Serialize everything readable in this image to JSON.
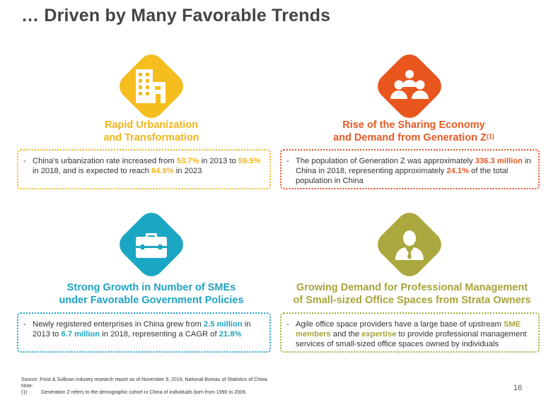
{
  "title": "… Driven by Many Favorable Trends",
  "colors": {
    "yellow": "#f6bd1e",
    "orange": "#e8561e",
    "teal": "#1ba7c4",
    "olive": "#aaa83f",
    "yellow_text": "#f0b51c",
    "orange_text": "#e55a25",
    "teal_text": "#1fa3c2",
    "olive_text": "#a7a53b"
  },
  "quadrants": {
    "urbanization": {
      "icon": "buildings-icon",
      "heading_line1": "Rapid Urbanization",
      "heading_line2": "and Transformation",
      "t1": "China’s urbanization rate increased from ",
      "h1": "53.7%",
      "t2": " in 2013 to ",
      "h2": "59.5%",
      "t3": " in 2018, and is expected to reach ",
      "h3": "64.9%",
      "t4": " in 2023"
    },
    "sharing": {
      "icon": "people-group-icon",
      "heading_line1": "Rise of the Sharing Economy",
      "heading_line2": "and Demand from Generation Z",
      "footnote_ref": "(1)",
      "t1": "The population of Generation Z was approximately ",
      "h1": "336.3 million",
      "t2": " in China in 2018, representing approximately ",
      "h2": "24.1%",
      "t3": " of the total population in China"
    },
    "smes": {
      "icon": "briefcase-icon",
      "heading_line1": "Strong Growth in Number of SMEs",
      "heading_line2": "under Favorable Government Policies",
      "t1": "Newly registered enterprises in China grew from ",
      "h1": "2.5 million",
      "t2": " in 2013 to ",
      "h2": "6.7 million",
      "t3": " in 2018, representing a CAGR of ",
      "h3": "21.8%"
    },
    "professional": {
      "icon": "businessman-icon",
      "heading_line1": "Growing Demand for Professional Management",
      "heading_line2": "of Small-sized Office Spaces from Strata Owners",
      "t1": "Agile office space providers have a large base of upstream ",
      "h1": "SME members",
      "t2": " and the ",
      "h2": "expertise",
      "t3": " to provide professional management services of small-sized office spaces owned by individuals"
    }
  },
  "bullet": "-",
  "footer": {
    "source": "Source:  Frost & Sullivan industry research report as of November 9, 2019, National Bureau of Statistics of China.",
    "note_label": "Note:",
    "note_number": "(1)",
    "note_text": "Generation Z refers to the demographic cohort in China of individuals born from 1990 to 2009."
  },
  "page_number": "16"
}
